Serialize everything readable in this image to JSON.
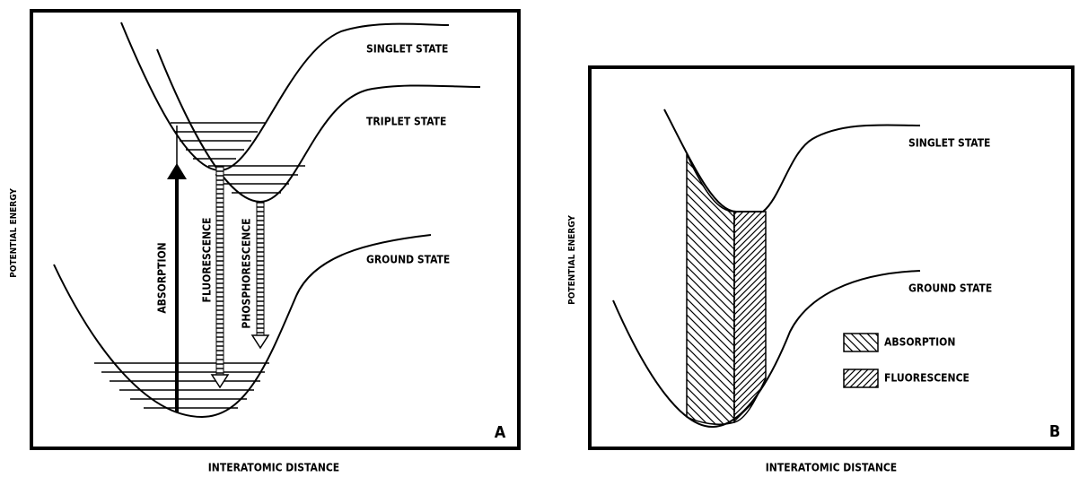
{
  "panels": [
    {
      "label": "A",
      "states": [
        "SINGLET STATE",
        "TRIPLET STATE",
        "GROUND STATE"
      ],
      "transitions": [
        "ABSORPTION",
        "FLUORESCENCE",
        "PHOSPHORESCENCE"
      ],
      "y_axis": "POTENTIAL ENERGY",
      "x_axis": "INTERATOMIC DISTANCE"
    },
    {
      "label": "B",
      "states": [
        "SINGLET STATE",
        "GROUND STATE"
      ],
      "legend": [
        "ABSORPTION",
        "FLUORESCENCE"
      ],
      "y_axis": "POTENTIAL ENERGY",
      "x_axis": "INTERATOMIC DISTANCE"
    }
  ]
}
